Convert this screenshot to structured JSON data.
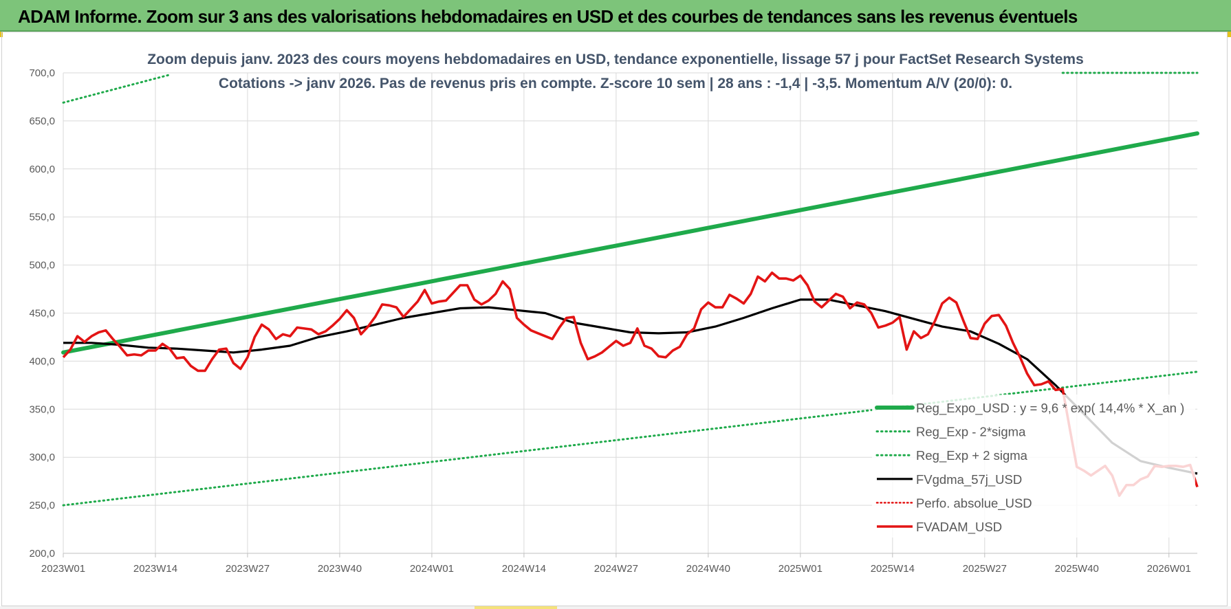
{
  "banner": {
    "title": "ADAM Informe. Zoom sur 3 ans des valorisations hebdomadaires en USD et des courbes de tendances sans les revenus éventuels"
  },
  "colors": {
    "banner": "#7dc47a",
    "trend": "#1faa4b",
    "fv": "#000000",
    "price": "#e31414",
    "perf": "#e31414",
    "grid": "#d9d9d9"
  },
  "chart_data": {
    "type": "line",
    "title": "Zoom depuis janv. 2023 des cours moyens hebdomadaires en USD, tendance exponentielle, lissage 57 j pour FactSet Research Systems",
    "subtitle": "Cotations -> janv 2026. Pas de revenus pris en compte. Z-score 10 sem | 28 ans : -1,4 | -3,5. Momentum A/V (20/0): 0.",
    "xlabel": "",
    "ylabel": "",
    "ylim": [
      200,
      700
    ],
    "yticks": [
      "200,0",
      "250,0",
      "300,0",
      "350,0",
      "400,0",
      "450,0",
      "500,0",
      "550,0",
      "600,0",
      "650,0",
      "700,0"
    ],
    "x_range": [
      0,
      160
    ],
    "xtick_labels": [
      "2023W01",
      "2023W14",
      "2023W27",
      "2023W40",
      "2024W01",
      "2024W14",
      "2024W27",
      "2024W40",
      "2025W01",
      "2025W14",
      "2025W27",
      "2025W40",
      "2026W01"
    ],
    "xtick_positions": [
      0,
      13,
      26,
      39,
      52,
      65,
      78,
      91,
      104,
      117,
      130,
      143,
      156
    ],
    "series": [
      {
        "name": "Reg_Expo_USD : y = 9,6 * exp( 14,4% *  X_an )",
        "style": "trend",
        "x": [
          0,
          160
        ],
        "values": [
          409,
          637
        ]
      },
      {
        "name": "Reg_Exp - 2*sigma",
        "style": "dotted",
        "x": [
          0,
          160
        ],
        "values": [
          250,
          389
        ]
      },
      {
        "name": "Reg_Exp + 2 sigma",
        "style": "dotted",
        "x": [
          0,
          15,
          141,
          160
        ],
        "values": [
          669,
          698,
          700,
          700
        ],
        "gaps_after_index": [
          1
        ]
      },
      {
        "name": "FVgdma_57j_USD",
        "style": "fv",
        "x": [
          0,
          4,
          8,
          12,
          16,
          20,
          24,
          28,
          32,
          36,
          40,
          44,
          48,
          52,
          56,
          60,
          64,
          68,
          72,
          76,
          80,
          84,
          88,
          92,
          96,
          100,
          104,
          108,
          112,
          116,
          120,
          124,
          128,
          132,
          136,
          140,
          144,
          148,
          152,
          156,
          160
        ],
        "values": [
          419,
          419,
          417,
          414,
          413,
          411,
          409,
          412,
          416,
          425,
          431,
          438,
          445,
          450,
          455,
          456,
          453,
          450,
          440,
          435,
          430,
          429,
          430,
          436,
          445,
          455,
          464,
          464,
          458,
          452,
          444,
          436,
          431,
          418,
          402,
          375,
          345,
          315,
          296,
          289,
          283
        ]
      },
      {
        "name": "Perfo. absolue_USD",
        "style": "perf",
        "x": [],
        "values": []
      },
      {
        "name": "FVADAM_USD",
        "style": "price",
        "x": [
          0,
          1,
          2,
          3,
          4,
          5,
          6,
          7,
          8,
          9,
          10,
          11,
          12,
          13,
          14,
          15,
          16,
          17,
          18,
          19,
          20,
          21,
          22,
          23,
          24,
          25,
          26,
          27,
          28,
          29,
          30,
          31,
          32,
          33,
          34,
          35,
          36,
          37,
          38,
          39,
          40,
          41,
          42,
          43,
          44,
          45,
          46,
          47,
          48,
          49,
          50,
          51,
          52,
          53,
          54,
          55,
          56,
          57,
          58,
          59,
          60,
          61,
          62,
          63,
          64,
          65,
          66,
          67,
          68,
          69,
          70,
          71,
          72,
          73,
          74,
          75,
          76,
          77,
          78,
          79,
          80,
          81,
          82,
          83,
          84,
          85,
          86,
          87,
          88,
          89,
          90,
          91,
          92,
          93,
          94,
          95,
          96,
          97,
          98,
          99,
          100,
          101,
          102,
          103,
          104,
          105,
          106,
          107,
          108,
          109,
          110,
          111,
          112,
          113,
          114,
          115,
          116,
          117,
          118,
          119,
          120,
          121,
          122,
          123,
          124,
          125,
          126,
          127,
          128,
          129,
          130,
          131,
          132,
          133,
          134,
          135,
          136,
          137,
          138,
          139,
          140,
          141,
          142,
          143,
          144,
          145,
          146,
          147,
          148,
          149,
          150,
          151,
          152,
          153,
          154,
          155,
          156,
          157,
          158,
          159,
          160
        ],
        "values": [
          404,
          412,
          426,
          420,
          426,
          430,
          432,
          423,
          415,
          406,
          407,
          406,
          411,
          411,
          418,
          413,
          403,
          404,
          395,
          390,
          390,
          402,
          412,
          413,
          398,
          392,
          404,
          425,
          438,
          433,
          423,
          428,
          426,
          435,
          434,
          433,
          428,
          431,
          437,
          444,
          453,
          445,
          428,
          436,
          446,
          459,
          458,
          456,
          446,
          454,
          462,
          474,
          460,
          462,
          463,
          471,
          479,
          479,
          464,
          459,
          463,
          470,
          483,
          475,
          445,
          438,
          432,
          429,
          426,
          423,
          435,
          445,
          446,
          419,
          402,
          405,
          409,
          415,
          421,
          416,
          419,
          434,
          416,
          413,
          405,
          404,
          411,
          415,
          428,
          434,
          454,
          461,
          456,
          456,
          469,
          465,
          460,
          470,
          488,
          483,
          492,
          486,
          486,
          484,
          489,
          479,
          462,
          456,
          463,
          470,
          467,
          455,
          461,
          459,
          450,
          435,
          437,
          440,
          446,
          412,
          431,
          424,
          428,
          442,
          460,
          466,
          461,
          442,
          424,
          423,
          439,
          447,
          448,
          437,
          419,
          404,
          387,
          375,
          376,
          379,
          370,
          371,
          330,
          290,
          286,
          281,
          286,
          291,
          281,
          260,
          271,
          271,
          277,
          280,
          291,
          290,
          291,
          291,
          290,
          292,
          269
        ]
      }
    ],
    "legend": [
      {
        "label": "Reg_Expo_USD : y = 9,6 * exp( 14,4% *  X_an )",
        "style": "trend"
      },
      {
        "label": "Reg_Exp - 2*sigma",
        "style": "dotted"
      },
      {
        "label": "Reg_Exp + 2 sigma",
        "style": "dotted"
      },
      {
        "label": "FVgdma_57j_USD",
        "style": "fv"
      },
      {
        "label": "Perfo. absolue_USD",
        "style": "perf"
      },
      {
        "label": "FVADAM_USD",
        "style": "price"
      }
    ],
    "legend_position": "bottom-right",
    "grid": true
  }
}
